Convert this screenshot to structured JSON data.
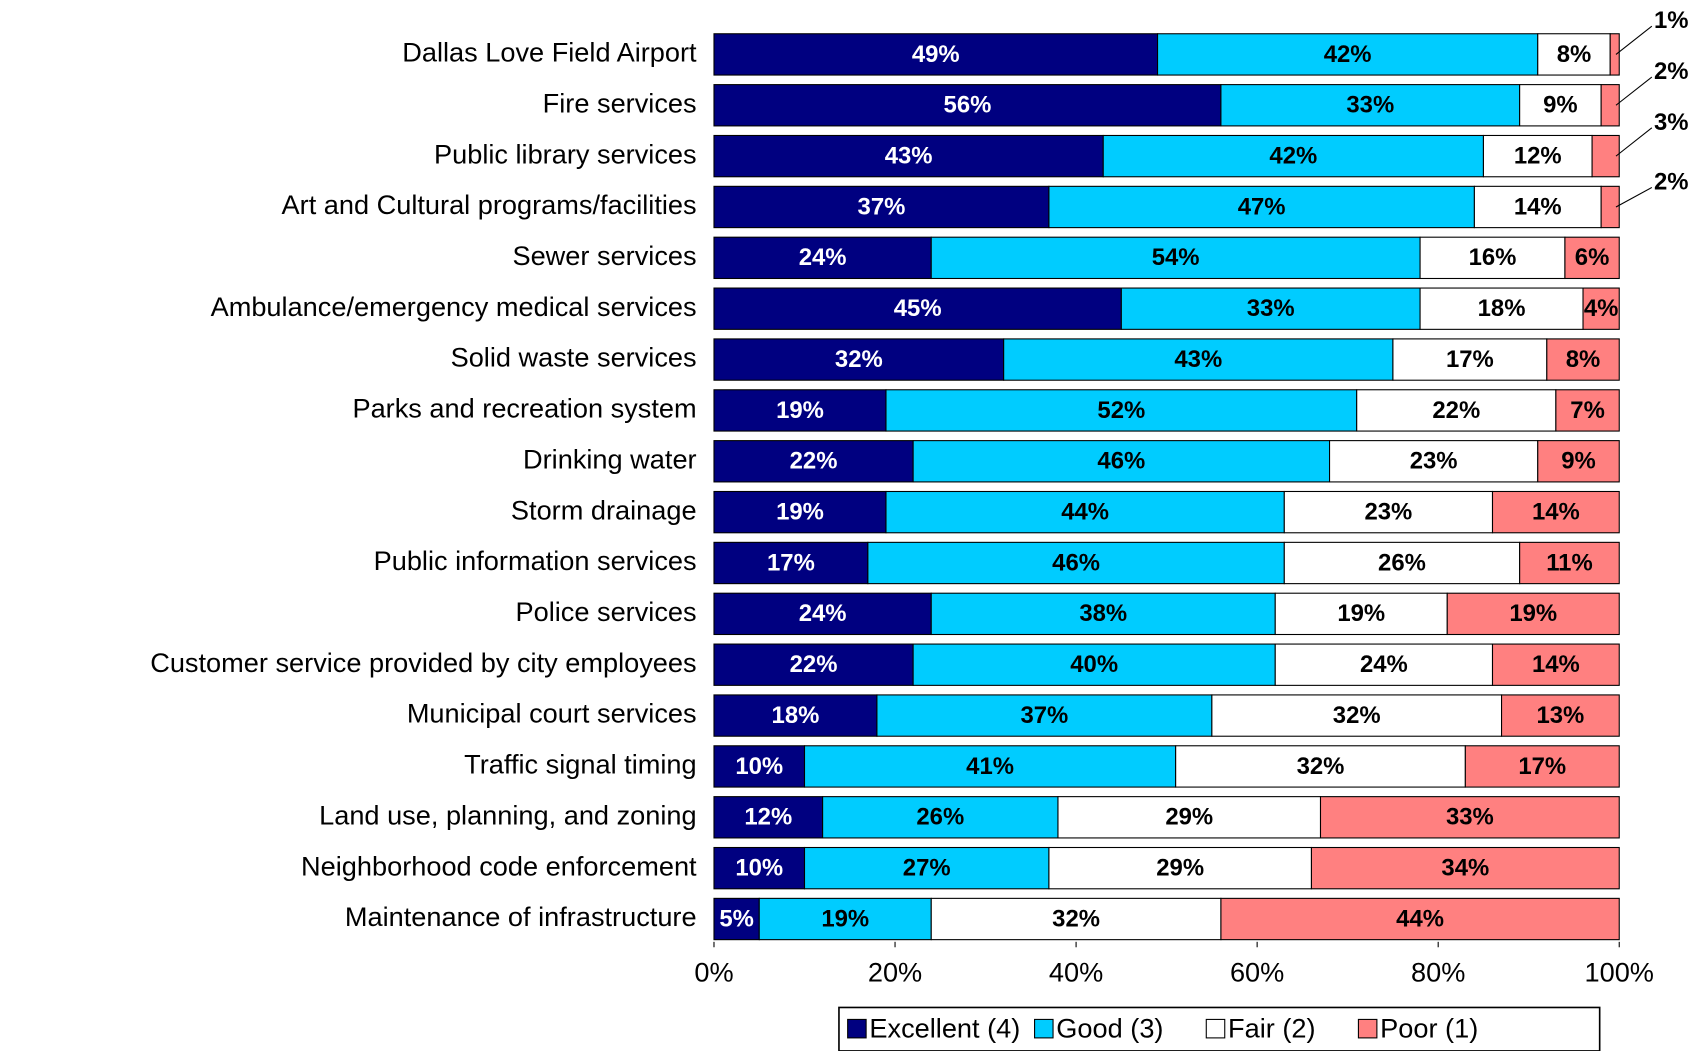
{
  "chart_data": {
    "type": "stacked-bar-horizontal",
    "categories": [
      "Dallas Love Field Airport",
      "Fire services",
      "Public library services",
      "Art and Cultural programs/facilities",
      "Sewer services",
      "Ambulance/emergency medical services",
      "Solid waste services",
      "Parks and recreation system",
      "Drinking water",
      "Storm drainage",
      "Public information services",
      "Police services",
      "Customer service provided by city employees",
      "Municipal court services",
      "Traffic signal timing",
      "Land use, planning, and zoning",
      "Neighborhood code enforcement",
      "Maintenance of infrastructure"
    ],
    "series": [
      {
        "name": "Excellent (4)",
        "color": "#000080",
        "values": [
          49,
          56,
          43,
          37,
          24,
          45,
          32,
          19,
          22,
          19,
          17,
          24,
          22,
          18,
          10,
          12,
          10,
          5
        ],
        "value_labels": [
          "49%",
          "56%",
          "43%",
          "37%",
          "24%",
          "45%",
          "32%",
          "19%",
          "22%",
          "19%",
          "17%",
          "24%",
          "22%",
          "18%",
          "10%",
          "12%",
          "10%",
          "5%"
        ]
      },
      {
        "name": "Good (3)",
        "color": "#00ccff",
        "values": [
          42,
          33,
          42,
          47,
          54,
          33,
          43,
          52,
          46,
          44,
          46,
          38,
          40,
          37,
          41,
          26,
          27,
          19
        ],
        "value_labels": [
          "42%",
          "33%",
          "42%",
          "47%",
          "54%",
          "33%",
          "43%",
          "52%",
          "46%",
          "44%",
          "46%",
          "38%",
          "40%",
          "37%",
          "41%",
          "26%",
          "27%",
          "19%"
        ]
      },
      {
        "name": "Fair (2)",
        "color": "#ffffff",
        "values": [
          8,
          9,
          12,
          14,
          16,
          18,
          17,
          22,
          23,
          23,
          26,
          19,
          24,
          32,
          32,
          29,
          29,
          32
        ],
        "value_labels": [
          "8%",
          "9%",
          "12%",
          "14%",
          "16%",
          "18%",
          "17%",
          "22%",
          "23%",
          "23%",
          "26%",
          "19%",
          "24%",
          "32%",
          "32%",
          "29%",
          "29%",
          "32%"
        ]
      },
      {
        "name": "Poor (1)",
        "color": "#ff8080",
        "values": [
          1,
          2,
          3,
          2,
          6,
          4,
          8,
          7,
          9,
          14,
          11,
          19,
          14,
          13,
          17,
          33,
          34,
          44
        ],
        "value_labels": [
          "1%",
          "2%",
          "3%",
          "2%",
          "6%",
          "4%",
          "8%",
          "7%",
          "9%",
          "14%",
          "11%",
          "19%",
          "14%",
          "13%",
          "17%",
          "33%",
          "34%",
          "44%"
        ]
      }
    ],
    "xlim": [
      0,
      100
    ],
    "xticks": [
      {
        "value": 0,
        "label": "0%"
      },
      {
        "value": 20,
        "label": "20%"
      },
      {
        "value": 40,
        "label": "40%"
      },
      {
        "value": 60,
        "label": "60%"
      },
      {
        "value": 80,
        "label": "80%"
      },
      {
        "value": 100,
        "label": "100%"
      }
    ],
    "legend": "bottom"
  }
}
